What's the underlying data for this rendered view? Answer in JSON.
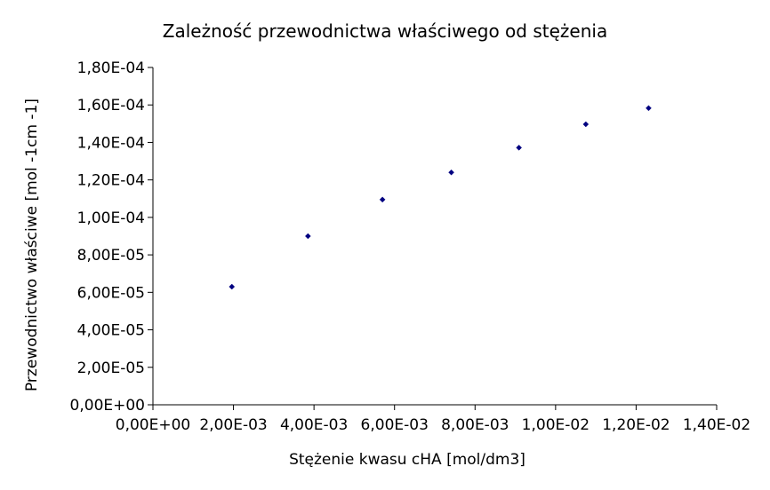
{
  "chart_data": {
    "type": "scatter",
    "title": "Zależność przewodnictwa właściwego od stężenia",
    "xlabel": "Stężenie kwasu cHA [mol/dm3]",
    "ylabel": "Przewodnictwo właściwe [mol -1cm -1]",
    "xlim": [
      0,
      0.014
    ],
    "ylim": [
      0,
      0.00018
    ],
    "x_ticks": [
      0,
      0.002,
      0.004,
      0.006,
      0.008,
      0.01,
      0.012,
      0.014
    ],
    "y_ticks": [
      0,
      2e-05,
      4e-05,
      6e-05,
      8e-05,
      0.0001,
      0.00012,
      0.00014,
      0.00016,
      0.00018
    ],
    "x_tick_labels": [
      "0,00E+00",
      "2,00E-03",
      "4,00E-03",
      "6,00E-03",
      "8,00E-03",
      "1,00E-02",
      "1,20E-02",
      "1,40E-02"
    ],
    "y_tick_labels": [
      "0,00E+00",
      "2,00E-05",
      "4,00E-05",
      "6,00E-05",
      "8,00E-05",
      "1,00E-04",
      "1,20E-04",
      "1,40E-04",
      "1,60E-04",
      "1,80E-04"
    ],
    "grid": false,
    "legend": "none",
    "marker_color": "#000080",
    "points": [
      {
        "x": 0.00196,
        "y": 6.3e-05
      },
      {
        "x": 0.00385,
        "y": 9e-05
      },
      {
        "x": 0.0057,
        "y": 0.0001095
      },
      {
        "x": 0.00741,
        "y": 0.000124
      },
      {
        "x": 0.00909,
        "y": 0.0001372
      },
      {
        "x": 0.01075,
        "y": 0.0001497
      },
      {
        "x": 0.01231,
        "y": 0.0001583
      }
    ]
  }
}
